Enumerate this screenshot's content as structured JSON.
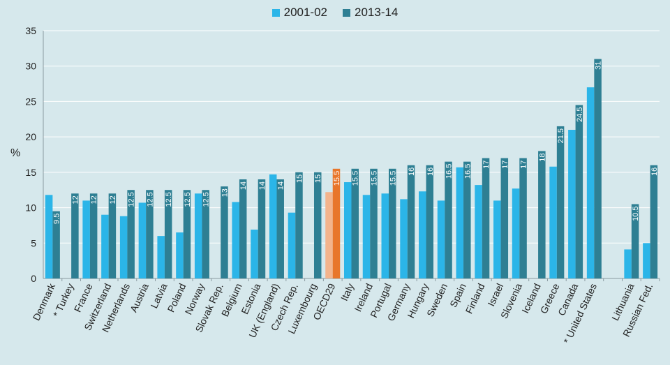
{
  "chart_data": {
    "type": "bar",
    "title": "",
    "ylabel": "%",
    "ylim": [
      0,
      35
    ],
    "yticks": [
      0,
      5,
      10,
      15,
      20,
      25,
      30,
      35
    ],
    "grid": true,
    "legend_position": "top-center",
    "colors": {
      "s1": "#2bb5e8",
      "s2": "#2e7f93",
      "s1_highlight": "#f3b48c",
      "s2_highlight": "#e8762b"
    },
    "highlight_category": "OECD29",
    "categories": [
      "Denmark",
      "* Turkey",
      "France",
      "Switzerland",
      "Netherlands",
      "Austria",
      "Latvia",
      "Poland",
      "Norway",
      "Slovak Rep.",
      "Belgium",
      "Estonia",
      "UK (England)",
      "Czech Rep.",
      "Luxembourg",
      "OECD29",
      "Italy",
      "Ireland",
      "Portugal",
      "Germany",
      "Hungary",
      "Sweden",
      "Spain",
      "Finland",
      "Israel",
      "Slovenia",
      "Iceland",
      "Greece",
      "Canada",
      "* United States",
      "",
      "Lithuania",
      "Russian Fed."
    ],
    "series": [
      {
        "name": "2001-02",
        "values": [
          11.8,
          null,
          11,
          9,
          8.8,
          10.7,
          6,
          6.5,
          12,
          null,
          10.8,
          6.9,
          14.7,
          9.3,
          null,
          12.2,
          13.6,
          11.8,
          12,
          11.2,
          12.3,
          11,
          15.7,
          13.2,
          11,
          12.7,
          null,
          15.8,
          21,
          27,
          null,
          4.1,
          5
        ]
      },
      {
        "name": "2013-14",
        "values": [
          9.5,
          12,
          12,
          12,
          12.5,
          12.5,
          12.5,
          12.5,
          12.5,
          13,
          14,
          14,
          14,
          15,
          15,
          15.5,
          15.5,
          15.5,
          15.5,
          16,
          16,
          16.5,
          16.5,
          17,
          17,
          17,
          18,
          21.5,
          24.5,
          31,
          null,
          10.5,
          16
        ]
      }
    ],
    "data_labels": {
      "series": "2013-14",
      "labels": [
        "9.5",
        "12",
        "12",
        "12",
        "12.5",
        "12.5",
        "12.5",
        "12.5",
        "12.5",
        "13",
        "14",
        "14",
        "14",
        "15",
        "15",
        "15.5",
        "15.5",
        "15.5",
        "15.5",
        "16",
        "16",
        "16.5",
        "16.5",
        "17",
        "17",
        "17",
        "18",
        "21.5",
        "24.5",
        "31",
        "",
        "10.5",
        "16"
      ]
    }
  }
}
